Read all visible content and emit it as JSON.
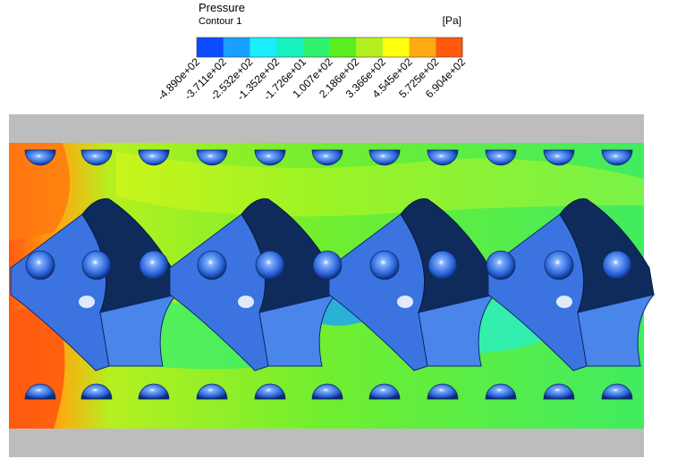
{
  "legend": {
    "title": "Pressure",
    "subtitle": "Contour 1",
    "unit": "[Pa]",
    "colors": [
      "#0a4bff",
      "#1aa0ff",
      "#18eeff",
      "#18f0c0",
      "#30f070",
      "#58ee20",
      "#b4f020",
      "#ffff10",
      "#ffaa10",
      "#ff5a10"
    ],
    "ticks": [
      "-4.890e+02",
      "-3.711e+02",
      "-2.532e+02",
      "-1.352e+02",
      "-1.726e+01",
      "1.007e+02",
      "2.186e+02",
      "3.366e+02",
      "4.545e+02",
      "5.725e+02",
      "6.904e+02"
    ]
  }
}
